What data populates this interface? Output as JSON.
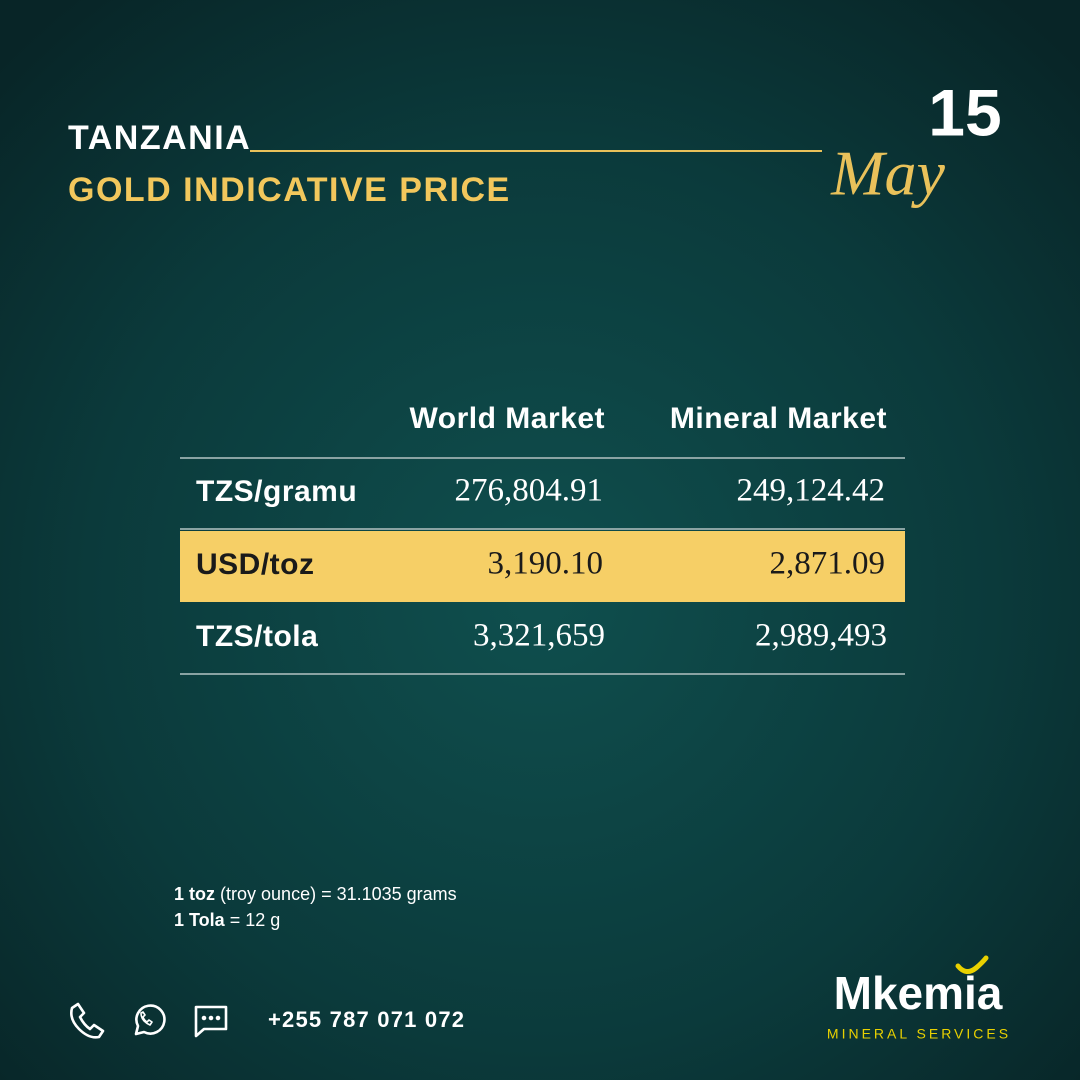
{
  "header": {
    "country": "TANZANIA",
    "title": "GOLD INDICATIVE PRICE",
    "day": "15",
    "month": "May"
  },
  "table": {
    "columns": [
      "World Market",
      "Mineral Market"
    ],
    "rows": [
      [
        "TZS/gramu",
        "276,804.91",
        "249,124.42"
      ],
      [
        "USD/toz",
        "3,190.10",
        "2,871.09"
      ],
      [
        "TZS/tola",
        "3,321,659",
        "2,989,493"
      ]
    ]
  },
  "notes": [
    [
      "1 toz",
      "(troy ounce) = 31.1035 grams"
    ],
    [
      "1 Tola",
      "= 12 g"
    ]
  ],
  "contact": {
    "phone": "+255 787 071 072"
  },
  "logo": {
    "name": "Mkemia",
    "tagline": "MINERAL SERVICES"
  }
}
